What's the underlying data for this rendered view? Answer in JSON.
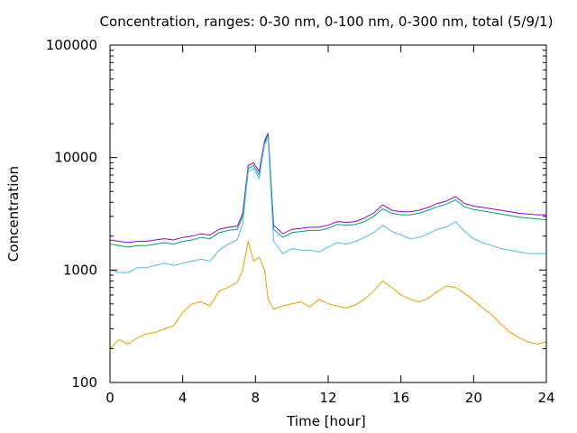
{
  "chart_data": {
    "type": "line",
    "title": "Concentration, ranges: 0-30 nm, 0-100 nm, 0-300 nm, total (5/9/1)",
    "xlabel": "Time [hour]",
    "ylabel": "Concentration",
    "xlim": [
      0,
      24
    ],
    "ylim": [
      100,
      100000
    ],
    "yscale": "log",
    "grid": false,
    "legend": "none",
    "x_ticks": [
      0,
      4,
      8,
      12,
      16,
      20,
      24
    ],
    "x_tick_labels": [
      "0",
      "4",
      "8",
      "12",
      "16",
      "20",
      "24"
    ],
    "y_ticks": [
      100,
      1000,
      10000,
      100000
    ],
    "y_tick_labels": [
      "100",
      "1000",
      "10000",
      "100000"
    ],
    "series": [
      {
        "color": "#9400d3",
        "x": [
          0,
          0.5,
          1,
          1.5,
          2,
          2.5,
          3,
          3.5,
          4,
          4.5,
          5,
          5.5,
          6,
          6.5,
          7,
          7.3,
          7.6,
          7.9,
          8.2,
          8.5,
          8.7,
          9,
          9.5,
          10,
          10.5,
          11,
          11.5,
          12,
          12.5,
          13,
          13.5,
          14,
          14.5,
          15,
          15.5,
          16,
          16.5,
          17,
          17.5,
          18,
          18.5,
          19,
          19.5,
          20,
          20.5,
          21,
          21.5,
          22,
          22.5,
          23,
          23.5,
          24
        ],
        "y": [
          1850,
          1800,
          1750,
          1800,
          1800,
          1850,
          1900,
          1850,
          1950,
          2000,
          2100,
          2050,
          2300,
          2400,
          2450,
          3200,
          8500,
          9000,
          7500,
          14000,
          16500,
          2500,
          2100,
          2300,
          2350,
          2400,
          2400,
          2500,
          2700,
          2650,
          2700,
          2900,
          3200,
          3800,
          3400,
          3300,
          3300,
          3400,
          3600,
          3900,
          4100,
          4500,
          3900,
          3700,
          3600,
          3500,
          3400,
          3300,
          3200,
          3150,
          3100,
          3100
        ]
      },
      {
        "color": "#009e73",
        "x": [
          0,
          0.5,
          1,
          1.5,
          2,
          2.5,
          3,
          3.5,
          4,
          4.5,
          5,
          5.5,
          6,
          6.5,
          7,
          7.3,
          7.6,
          7.9,
          8.2,
          8.5,
          8.7,
          9,
          9.5,
          10,
          10.5,
          11,
          11.5,
          12,
          12.5,
          13,
          13.5,
          14,
          14.5,
          15,
          15.5,
          16,
          16.5,
          17,
          17.5,
          18,
          18.5,
          19,
          19.5,
          20,
          20.5,
          21,
          21.5,
          22,
          22.5,
          23,
          23.5,
          24
        ],
        "y": [
          1700,
          1650,
          1600,
          1650,
          1650,
          1700,
          1750,
          1700,
          1800,
          1850,
          1950,
          1900,
          2150,
          2250,
          2300,
          3000,
          8000,
          8500,
          7000,
          13500,
          16000,
          2300,
          1950,
          2150,
          2200,
          2250,
          2250,
          2350,
          2550,
          2500,
          2550,
          2700,
          3000,
          3500,
          3200,
          3100,
          3100,
          3200,
          3400,
          3650,
          3850,
          4200,
          3650,
          3450,
          3350,
          3250,
          3150,
          3050,
          2950,
          2900,
          2850,
          2800
        ]
      },
      {
        "color": "#56b4e9",
        "x": [
          0,
          0.5,
          1,
          1.5,
          2,
          2.5,
          3,
          3.5,
          4,
          4.5,
          5,
          5.5,
          6,
          6.5,
          7,
          7.3,
          7.6,
          7.9,
          8.2,
          8.5,
          8.7,
          9,
          9.5,
          10,
          10.5,
          11,
          11.5,
          12,
          12.5,
          13,
          13.5,
          14,
          14.5,
          15,
          15.5,
          16,
          16.5,
          17,
          17.5,
          18,
          18.5,
          19,
          19.5,
          20,
          20.5,
          21,
          21.5,
          22,
          22.5,
          23,
          23.5,
          24
        ],
        "y": [
          1000,
          950,
          950,
          1050,
          1050,
          1100,
          1150,
          1100,
          1150,
          1200,
          1250,
          1200,
          1500,
          1700,
          1850,
          2600,
          7500,
          8000,
          6500,
          13000,
          15000,
          1800,
          1400,
          1550,
          1500,
          1500,
          1450,
          1600,
          1750,
          1700,
          1800,
          1950,
          2150,
          2500,
          2200,
          2050,
          1900,
          1950,
          2100,
          2300,
          2400,
          2700,
          2200,
          1900,
          1750,
          1650,
          1550,
          1500,
          1450,
          1400,
          1400,
          1400
        ]
      },
      {
        "color": "#e69f00",
        "x": [
          0,
          0.5,
          1,
          1.5,
          2,
          2.5,
          3,
          3.5,
          4,
          4.5,
          5,
          5.5,
          6,
          6.5,
          7,
          7.3,
          7.6,
          7.9,
          8.2,
          8.5,
          8.7,
          9,
          9.5,
          10,
          10.5,
          11,
          11.5,
          12,
          12.5,
          13,
          13.5,
          14,
          14.5,
          15,
          15.5,
          16,
          16.5,
          17,
          17.5,
          18,
          18.5,
          19,
          19.5,
          20,
          20.5,
          21,
          21.5,
          22,
          22.5,
          23,
          23.5,
          24
        ],
        "y": [
          200,
          240,
          220,
          250,
          270,
          280,
          300,
          320,
          420,
          500,
          520,
          480,
          650,
          700,
          780,
          1000,
          1800,
          1200,
          1300,
          1000,
          550,
          450,
          480,
          500,
          520,
          470,
          550,
          500,
          480,
          460,
          490,
          550,
          650,
          800,
          700,
          600,
          550,
          520,
          560,
          640,
          720,
          700,
          620,
          540,
          460,
          400,
          330,
          280,
          250,
          230,
          220,
          230
        ]
      }
    ]
  }
}
